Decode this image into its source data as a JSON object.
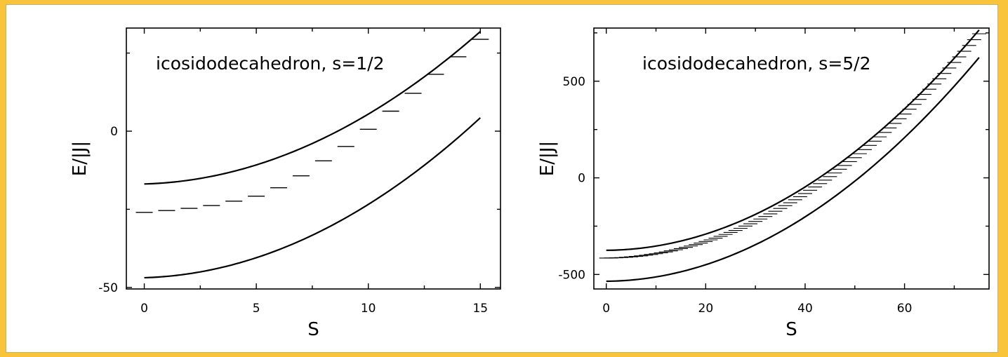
{
  "colors": {
    "background": "#f9c33a",
    "panel": "#ffffff",
    "ink": "#000000"
  },
  "chart_data": [
    {
      "type": "line",
      "title": "",
      "annotation": "icosidodecahedron, s=1/2",
      "xlabel": "S",
      "ylabel": "E/|J|",
      "xlim": [
        -0.8,
        15.9
      ],
      "ylim": [
        -50.5,
        33
      ],
      "xticks": [
        0,
        5,
        10,
        15
      ],
      "xtick_labels": [
        "0",
        "5",
        "10",
        "15"
      ],
      "yticks": [
        -50,
        0
      ],
      "ytick_labels": [
        "-50",
        "0"
      ],
      "grid": false,
      "curves": [
        {
          "role": "upper-bound",
          "x0": 0,
          "x1": 15,
          "y0": -16.9,
          "k": 0.2033
        },
        {
          "role": "lower-bound",
          "x0": 0,
          "x1": 15,
          "y0": -46.9,
          "k": 0.2133
        }
      ],
      "levels": {
        "S": [
          0,
          1,
          2,
          3,
          4,
          5,
          6,
          7,
          8,
          9,
          10,
          11,
          12,
          13,
          14,
          15
        ],
        "E": [
          -26.0,
          -25.4,
          -24.7,
          -23.8,
          -22.4,
          -20.8,
          -18.1,
          -14.3,
          -9.5,
          -4.9,
          0.6,
          6.4,
          12.1,
          18.2,
          23.8,
          29.4
        ]
      }
    },
    {
      "type": "line",
      "title": "",
      "annotation": "icosidodecahedron, s=5/2",
      "xlabel": "S",
      "ylabel": "E/|J|",
      "xlim": [
        -2.5,
        77
      ],
      "ylim": [
        -575,
        775
      ],
      "xticks": [
        0,
        20,
        40,
        60
      ],
      "xtick_labels": [
        "0",
        "20",
        "40",
        "60"
      ],
      "yticks": [
        -500,
        0,
        500
      ],
      "ytick_labels": [
        "-500",
        "0",
        "500"
      ],
      "grid": false,
      "curves": [
        {
          "role": "upper-bound",
          "x0": 0,
          "x1": 75,
          "y0": -375,
          "k": 0.2
        },
        {
          "role": "lower-bound",
          "x0": 0,
          "x1": 75,
          "y0": -535,
          "k": 0.2031
        }
      ],
      "levels": {
        "S_start": 0,
        "S_end": 75,
        "E_start": -415,
        "k": 0.2036
      }
    }
  ]
}
